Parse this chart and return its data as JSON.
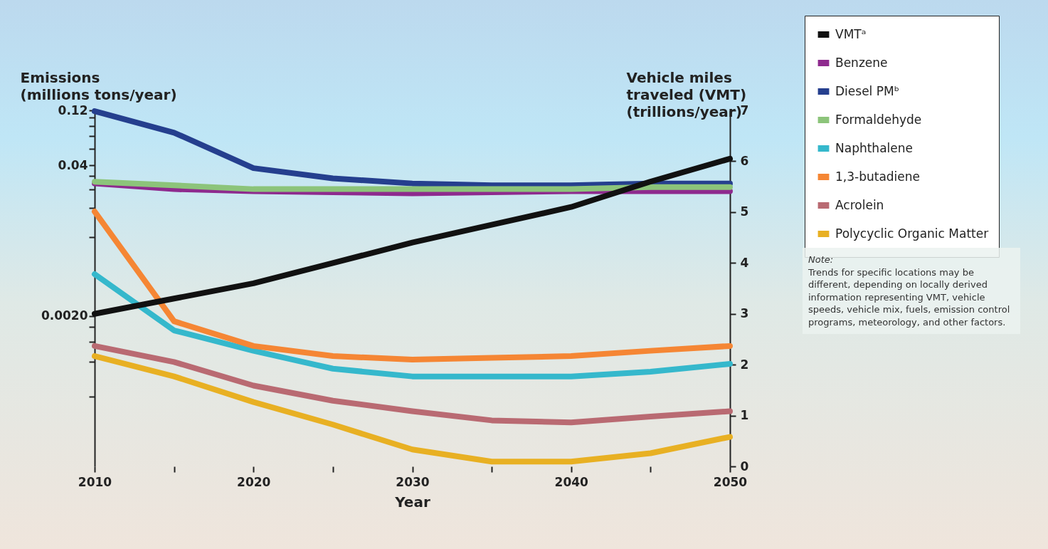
{
  "chart_data": {
    "type": "line",
    "xlabel": "Year",
    "ylabel": "Emissions\n(millions tons/year)",
    "y2label": "Vehicle miles\ntraveled (VMT)\n(trillions/year)",
    "x": [
      2010,
      2015,
      2020,
      2025,
      2030,
      2035,
      2040,
      2045,
      2050
    ],
    "xlim": [
      2010,
      2050
    ],
    "xticks": [
      2010,
      {
        "value": 2015,
        "label": null
      },
      2020,
      {
        "value": 2025,
        "label": null
      },
      2030,
      {
        "value": 2035,
        "label": null
      },
      2040,
      {
        "value": 2045,
        "label": null
      },
      2050
    ],
    "ylim": [
      0.0001,
      0.12
    ],
    "log": "y",
    "yticks": [
      {
        "value": 0.0004,
        "label": null
      },
      {
        "value": 0.0008,
        "label": null
      },
      {
        "value": 0.0012,
        "label": null
      },
      {
        "value": 0.0016,
        "label": null
      },
      {
        "value": 0.002,
        "label": "0.0020"
      },
      {
        "value": 0.0096,
        "label": null
      },
      {
        "value": 0.0172,
        "label": null
      },
      {
        "value": 0.0248,
        "label": null
      },
      {
        "value": 0.0324,
        "label": null
      },
      0.04,
      {
        "value": 0.056,
        "label": null
      },
      {
        "value": 0.072,
        "label": null
      },
      {
        "value": 0.088,
        "label": null
      },
      {
        "value": 0.104,
        "label": null
      },
      0.12
    ],
    "y2lim": [
      0,
      7
    ],
    "y2ticks": [
      0,
      1,
      2,
      3,
      4,
      5,
      6,
      7
    ],
    "grid": false,
    "legend": "right",
    "marker": "none",
    "line_style": "solid",
    "series": [
      {
        "name": "VMTᵃ",
        "color": "#111111",
        "axis": "y2",
        "values": [
          3.0,
          3.3,
          3.6,
          4.0,
          4.4,
          4.75,
          5.1,
          5.6,
          6.05
        ]
      },
      {
        "name": "Benzene",
        "color": "#8e2a8e",
        "values": [
          0.028,
          0.025,
          0.024,
          0.0235,
          0.023,
          0.0235,
          0.024,
          0.024,
          0.024
        ]
      },
      {
        "name": "Diesel PMᵇ",
        "color": "#253f8e",
        "values": [
          0.118,
          0.077,
          0.038,
          0.031,
          0.028,
          0.027,
          0.027,
          0.028,
          0.028
        ]
      },
      {
        "name": "Formaldehyde",
        "color": "#8cc47a",
        "values": [
          0.029,
          0.027,
          0.025,
          0.025,
          0.025,
          0.025,
          0.025,
          0.026,
          0.026
        ]
      },
      {
        "name": "Naphthalene",
        "color": "#35b8cc",
        "values": [
          0.0046,
          0.0015,
          0.001,
          0.0007,
          0.0006,
          0.0006,
          0.0006,
          0.00066,
          0.00077
        ]
      },
      {
        "name": "1,3-butadiene",
        "color": "#f58634",
        "values": [
          0.016,
          0.0018,
          0.0011,
          0.0009,
          0.00084,
          0.00087,
          0.0009,
          0.001,
          0.0011
        ]
      },
      {
        "name": "Acrolein",
        "color": "#b96a72",
        "values": [
          0.0011,
          0.0008,
          0.0005,
          0.00037,
          0.0003,
          0.00025,
          0.00024,
          0.00027,
          0.0003
        ]
      },
      {
        "name": "Polycyclic Organic Matter",
        "color": "#e8b023",
        "values": [
          0.0009,
          0.0006,
          0.00036,
          0.00023,
          0.00014,
          0.00011,
          0.00011,
          0.00013,
          0.00018
        ]
      }
    ],
    "annotations": [
      "Note:",
      "Trends for specific locations may be different, depending on locally derived information representing VMT, vehicle speeds, vehicle mix, fuels, emission control programs, meteorology, and other factors."
    ]
  }
}
